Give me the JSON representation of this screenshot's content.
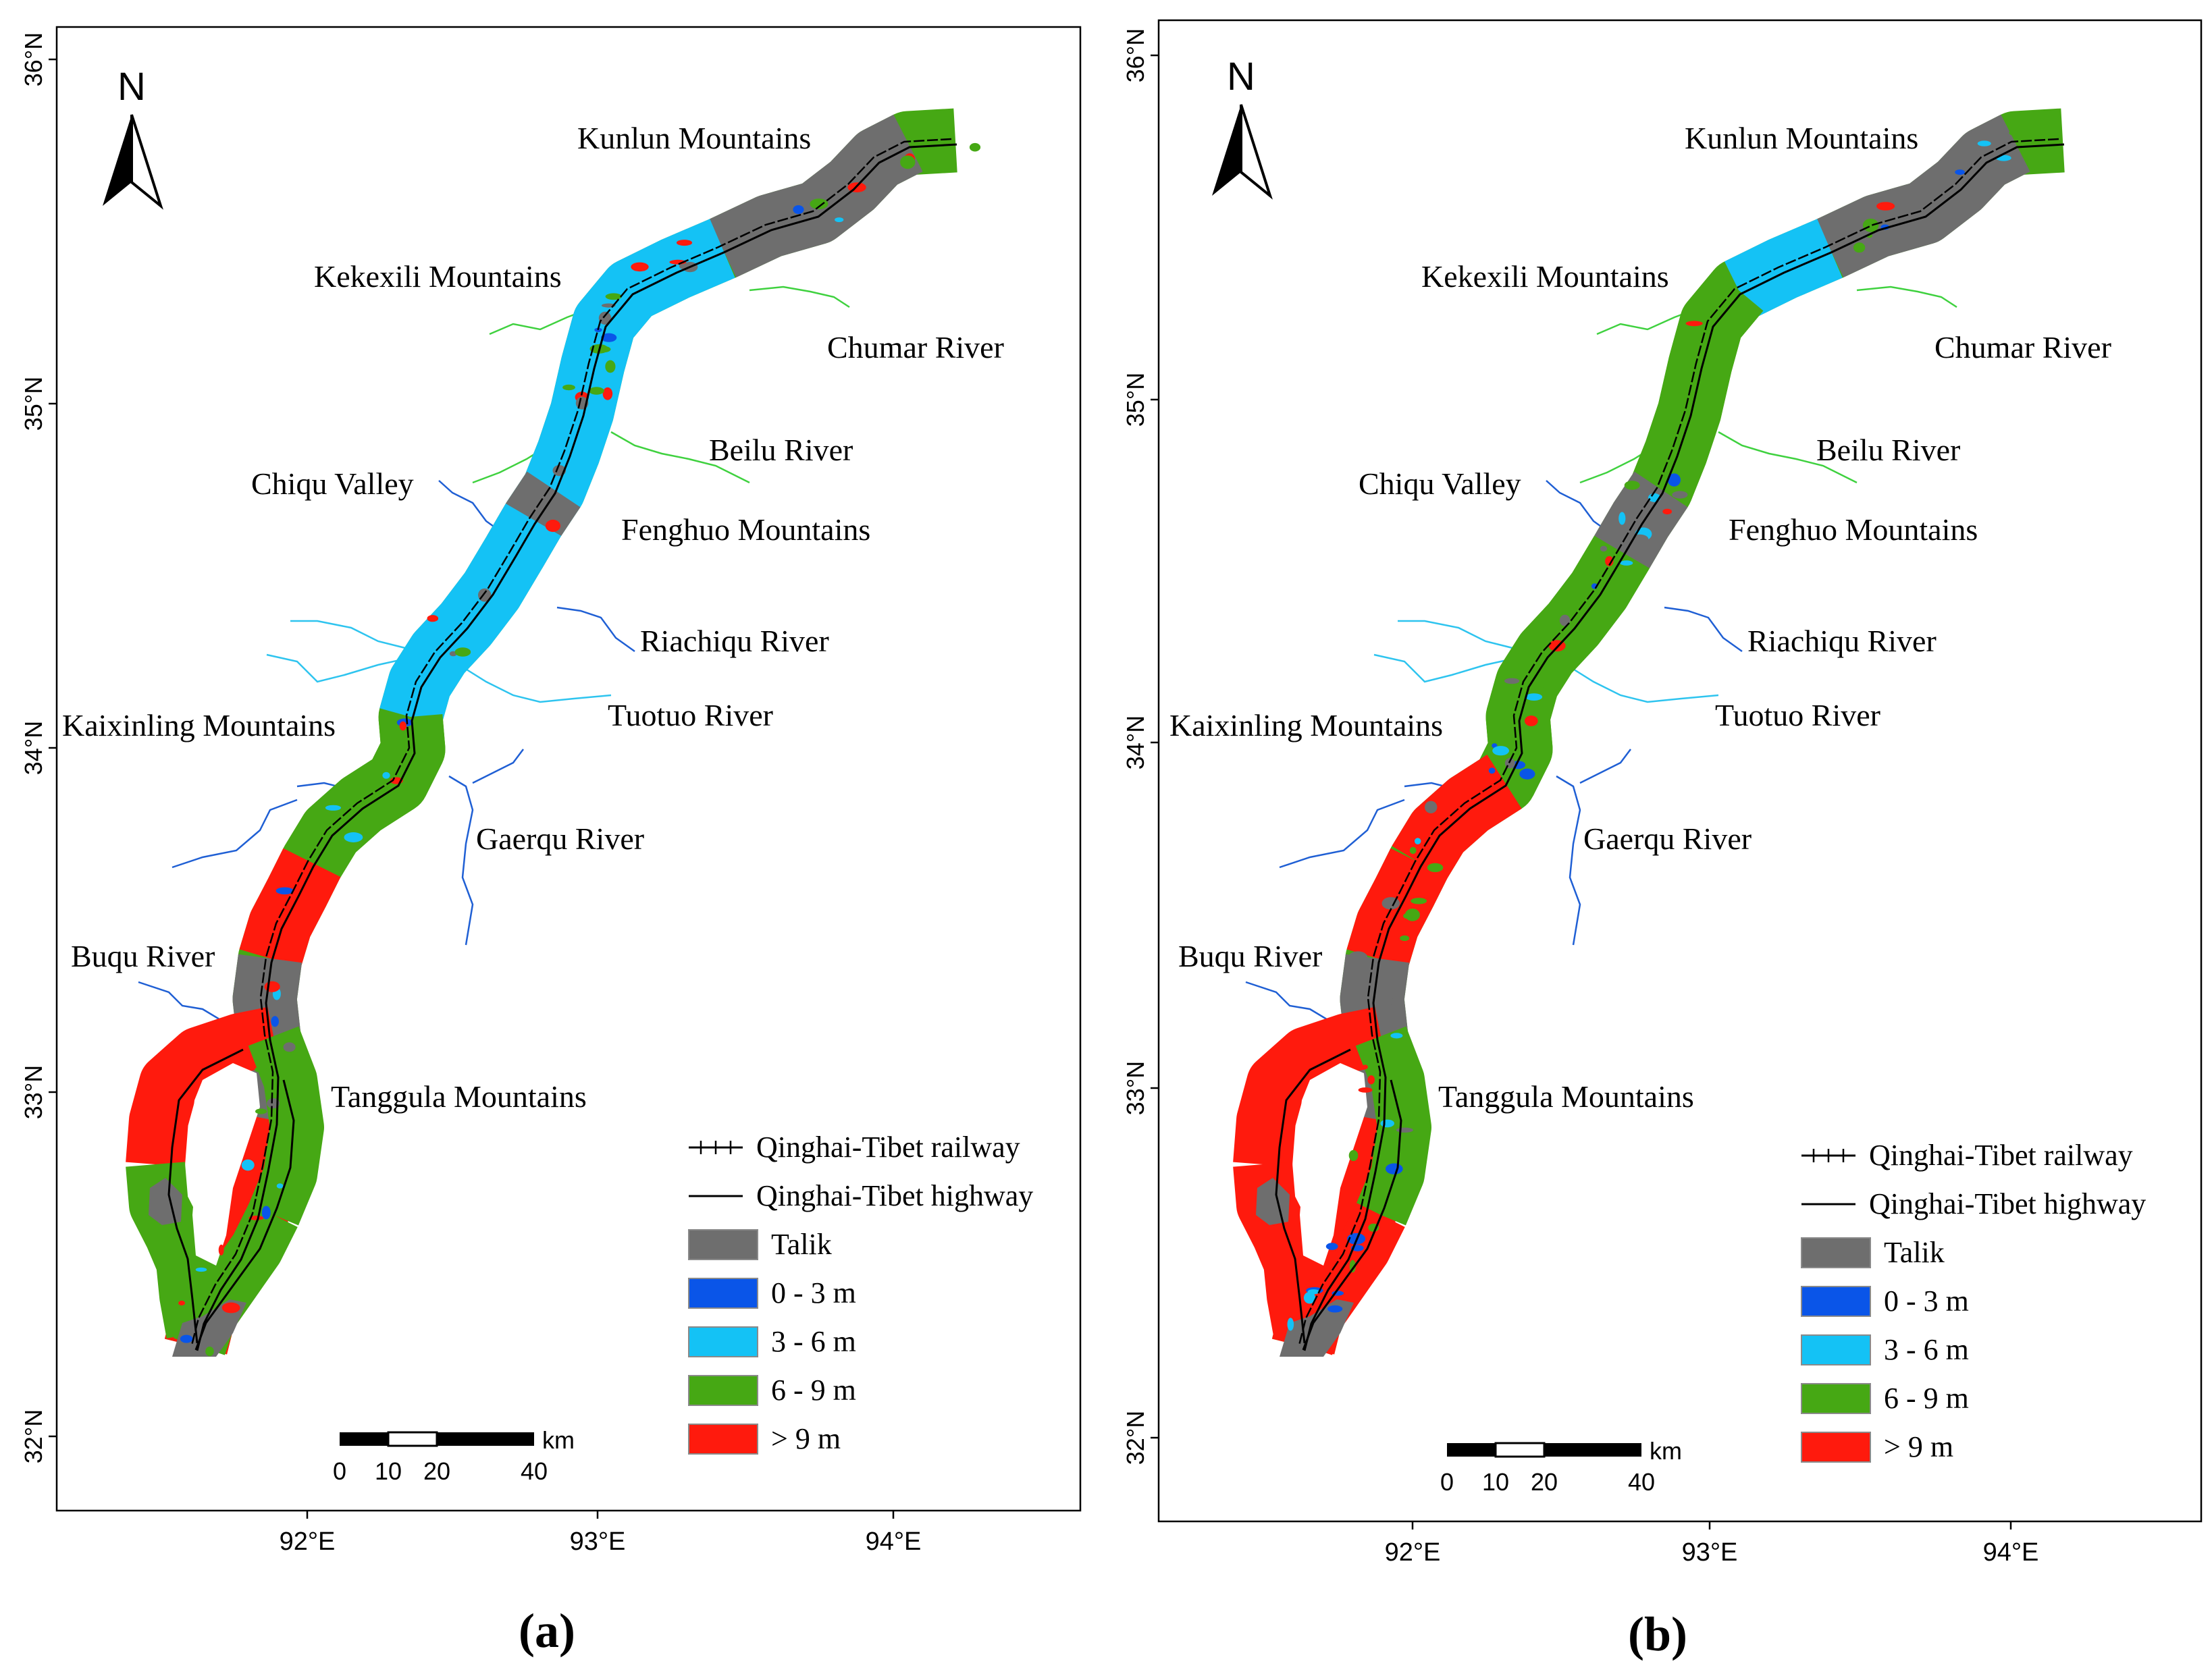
{
  "colors": {
    "talik": "#6e6e6e",
    "d0_3": "#0a55e8",
    "d3_6": "#14c2f5",
    "d6_9": "#46a814",
    "gt9": "#ff1a0d",
    "river_blue": "#1f5fd4",
    "river_cyan": "#2ec4ef",
    "river_green": "#3fd13f"
  },
  "panels": [
    {
      "id": "a",
      "caption": "(a)",
      "lat_ticks": [
        "36°N",
        "35°N",
        "34°N",
        "33°N",
        "32°N"
      ],
      "lon_ticks": [
        "92°E",
        "93°E",
        "94°E"
      ],
      "north": "N",
      "scale": {
        "unit": "km",
        "labels": [
          "0",
          "10",
          "20",
          "40"
        ]
      },
      "legend": [
        {
          "key": "railway",
          "label": "Qinghai-Tibet railway"
        },
        {
          "key": "highway",
          "label": "Qinghai-Tibet highway"
        },
        {
          "key": "talik",
          "label": "Talik"
        },
        {
          "key": "d0_3",
          "label": "0 - 3 m"
        },
        {
          "key": "d3_6",
          "label": "3 - 6 m"
        },
        {
          "key": "d6_9",
          "label": "6 - 9 m"
        },
        {
          "key": "gt9",
          "label": "> 9 m"
        }
      ],
      "places": {
        "kunlun": "Kunlun Mountains",
        "kekexili": "Kekexili Mountains",
        "chumar": "Chumar River",
        "beilu": "Beilu River",
        "chiqu": "Chiqu Valley",
        "fenghuo": "Fenghuo Mountains",
        "riachiqu": "Riachiqu River",
        "tuotuo": "Tuotuo River",
        "kaixinling": "Kaixinling Mountains",
        "gaerqu": "Gaerqu River",
        "buqu": "Buqu River",
        "tanggula": "Tanggula Mountains"
      }
    },
    {
      "id": "b",
      "caption": "(b)",
      "lat_ticks": [
        "36°N",
        "35°N",
        "34°N",
        "33°N",
        "32°N"
      ],
      "lon_ticks": [
        "92°E",
        "93°E",
        "94°E"
      ],
      "north": "N",
      "scale": {
        "unit": "km",
        "labels": [
          "0",
          "10",
          "20",
          "40"
        ]
      },
      "legend": [
        {
          "key": "railway",
          "label": "Qinghai-Tibet railway"
        },
        {
          "key": "highway",
          "label": "Qinghai-Tibet highway"
        },
        {
          "key": "talik",
          "label": "Talik"
        },
        {
          "key": "d0_3",
          "label": "0 - 3 m"
        },
        {
          "key": "d3_6",
          "label": "3 - 6 m"
        },
        {
          "key": "d6_9",
          "label": "6 - 9 m"
        },
        {
          "key": "gt9",
          "label": "> 9 m"
        }
      ],
      "places": {
        "kunlun": "Kunlun Mountains",
        "kekexili": "Kekexili Mountains",
        "chumar": "Chumar River",
        "beilu": "Beilu River",
        "chiqu": "Chiqu Valley",
        "fenghuo": "Fenghuo Mountains",
        "riachiqu": "Riachiqu River",
        "tuotuo": "Tuotuo River",
        "kaixinling": "Kaixinling Mountains",
        "gaerqu": "Gaerqu River",
        "buqu": "Buqu River",
        "tanggula": "Tanggula Mountains"
      }
    }
  ]
}
